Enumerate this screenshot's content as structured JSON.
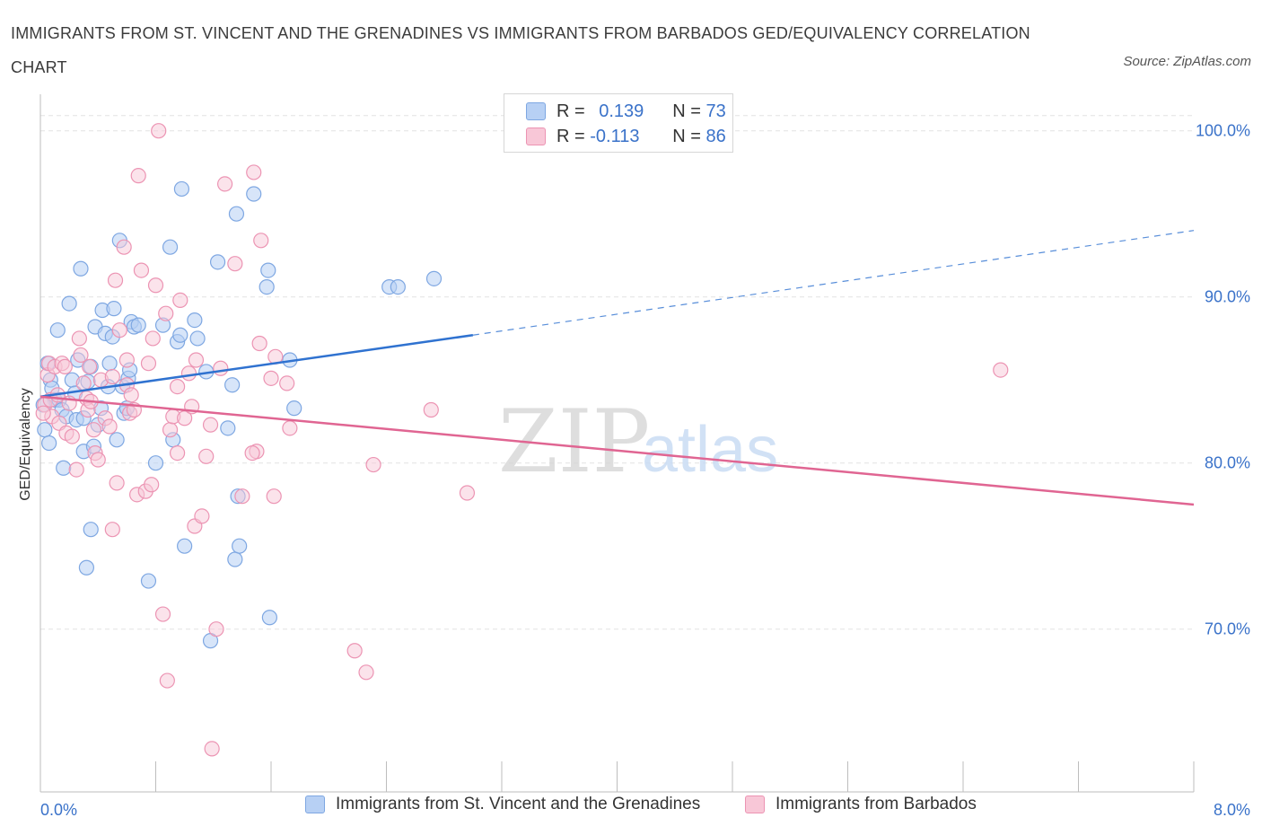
{
  "title": "IMMIGRANTS FROM ST. VINCENT AND THE GRENADINES VS IMMIGRANTS FROM BARBADOS GED/EQUIVALENCY CORRELATION CHART",
  "source": "Source: ZipAtlas.com",
  "watermark": {
    "zip": "ZIP",
    "atlas": "atlas"
  },
  "colors": {
    "blue_fill": "#b7d0f4",
    "blue_stroke": "#7ea7e2",
    "blue_line": "#2f72d0",
    "pink_fill": "#f8c7d7",
    "pink_stroke": "#ec94b3",
    "pink_line": "#e06592",
    "axis_text": "#3a72c9",
    "grid": "#e2e2e2"
  },
  "stats": {
    "blue": {
      "r_label": "R = ",
      "r_value": "0.139",
      "n_label": "N = ",
      "n_value": "73"
    },
    "pink": {
      "r_label": "R = ",
      "r_value": "-0.113",
      "n_label": "N = ",
      "n_value": "86"
    }
  },
  "chart_data": {
    "type": "scatter",
    "title": "IMMIGRANTS FROM ST. VINCENT AND THE GRENADINES VS IMMIGRANTS FROM BARBADOS GED/EQUIVALENCY CORRELATION CHART",
    "xlabel": "",
    "ylabel": "GED/Equivalency",
    "xlim": [
      0,
      8
    ],
    "ylim": [
      60.2,
      102.2
    ],
    "x_tick_labels": [
      "0.0%",
      "8.0%"
    ],
    "y_ticks": [
      70,
      80,
      90,
      100
    ],
    "y_tick_labels": [
      "70.0%",
      "80.0%",
      "90.0%",
      "100.0%"
    ],
    "grid": true,
    "legend_position": "bottom",
    "series": [
      {
        "name": "Immigrants from St. Vincent and the Grenadines",
        "color": "#7ea7e2",
        "trend": {
          "x0": 0,
          "y0": 84.0,
          "x1": 3.0,
          "y1": 87.7,
          "dashed_to_x": 8.0,
          "dashed_y": 94.0
        },
        "points": [
          [
            0.03,
            82.0
          ],
          [
            0.05,
            86.0
          ],
          [
            0.06,
            81.2
          ],
          [
            0.07,
            85.0
          ],
          [
            0.08,
            84.5
          ],
          [
            0.1,
            83.8
          ],
          [
            0.12,
            88.0
          ],
          [
            0.13,
            83.8
          ],
          [
            0.15,
            83.2
          ],
          [
            0.16,
            79.7
          ],
          [
            0.18,
            82.8
          ],
          [
            0.2,
            89.6
          ],
          [
            0.22,
            85.0
          ],
          [
            0.24,
            84.2
          ],
          [
            0.25,
            82.6
          ],
          [
            0.26,
            86.2
          ],
          [
            0.28,
            91.7
          ],
          [
            0.3,
            82.7
          ],
          [
            0.3,
            80.7
          ],
          [
            0.32,
            73.7
          ],
          [
            0.33,
            84.9
          ],
          [
            0.35,
            76.0
          ],
          [
            0.35,
            85.8
          ],
          [
            0.37,
            81.0
          ],
          [
            0.38,
            88.2
          ],
          [
            0.4,
            82.3
          ],
          [
            0.42,
            83.3
          ],
          [
            0.43,
            89.2
          ],
          [
            0.45,
            87.8
          ],
          [
            0.47,
            84.6
          ],
          [
            0.48,
            86.0
          ],
          [
            0.5,
            87.6
          ],
          [
            0.51,
            89.3
          ],
          [
            0.53,
            81.4
          ],
          [
            0.55,
            93.4
          ],
          [
            0.57,
            84.6
          ],
          [
            0.58,
            83.0
          ],
          [
            0.6,
            83.3
          ],
          [
            0.61,
            85.1
          ],
          [
            0.62,
            85.6
          ],
          [
            0.63,
            88.5
          ],
          [
            0.65,
            88.2
          ],
          [
            0.68,
            88.3
          ],
          [
            0.75,
            72.9
          ],
          [
            0.8,
            80.0
          ],
          [
            0.85,
            88.3
          ],
          [
            0.9,
            93.0
          ],
          [
            0.92,
            81.4
          ],
          [
            0.95,
            87.3
          ],
          [
            0.97,
            87.7
          ],
          [
            0.98,
            96.5
          ],
          [
            1.0,
            75.0
          ],
          [
            1.07,
            88.6
          ],
          [
            1.09,
            87.5
          ],
          [
            1.15,
            85.5
          ],
          [
            1.18,
            69.3
          ],
          [
            1.23,
            92.1
          ],
          [
            1.3,
            82.1
          ],
          [
            1.33,
            84.7
          ],
          [
            1.35,
            74.2
          ],
          [
            1.36,
            95.0
          ],
          [
            1.37,
            78.0
          ],
          [
            1.38,
            75.0
          ],
          [
            1.48,
            96.2
          ],
          [
            1.57,
            90.6
          ],
          [
            1.58,
            91.6
          ],
          [
            1.59,
            70.7
          ],
          [
            1.73,
            86.2
          ],
          [
            1.76,
            83.3
          ],
          [
            2.42,
            90.6
          ],
          [
            2.48,
            90.6
          ],
          [
            2.73,
            91.1
          ],
          [
            0.02,
            83.5
          ]
        ]
      },
      {
        "name": "Immigrants from Barbados",
        "color": "#ec94b3",
        "trend": {
          "x0": 0,
          "y0": 84.0,
          "x1": 8.0,
          "y1": 77.5
        },
        "points": [
          [
            0.03,
            83.5
          ],
          [
            0.05,
            85.3
          ],
          [
            0.06,
            86.0
          ],
          [
            0.07,
            83.8
          ],
          [
            0.08,
            82.8
          ],
          [
            0.1,
            85.8
          ],
          [
            0.12,
            84.1
          ],
          [
            0.13,
            82.4
          ],
          [
            0.15,
            86.0
          ],
          [
            0.17,
            85.8
          ],
          [
            0.18,
            81.8
          ],
          [
            0.2,
            83.6
          ],
          [
            0.22,
            81.6
          ],
          [
            0.25,
            79.6
          ],
          [
            0.27,
            87.5
          ],
          [
            0.28,
            86.5
          ],
          [
            0.3,
            84.8
          ],
          [
            0.32,
            83.9
          ],
          [
            0.33,
            83.2
          ],
          [
            0.35,
            83.7
          ],
          [
            0.37,
            82.0
          ],
          [
            0.38,
            80.6
          ],
          [
            0.4,
            80.2
          ],
          [
            0.42,
            85.0
          ],
          [
            0.45,
            82.7
          ],
          [
            0.48,
            82.2
          ],
          [
            0.5,
            85.2
          ],
          [
            0.5,
            76.0
          ],
          [
            0.52,
            91.0
          ],
          [
            0.53,
            78.8
          ],
          [
            0.55,
            88.0
          ],
          [
            0.58,
            93.0
          ],
          [
            0.6,
            86.2
          ],
          [
            0.6,
            84.7
          ],
          [
            0.62,
            83.0
          ],
          [
            0.63,
            84.1
          ],
          [
            0.65,
            83.2
          ],
          [
            0.67,
            78.1
          ],
          [
            0.68,
            97.3
          ],
          [
            0.7,
            91.6
          ],
          [
            0.73,
            78.3
          ],
          [
            0.75,
            86.0
          ],
          [
            0.77,
            78.7
          ],
          [
            0.78,
            87.5
          ],
          [
            0.8,
            90.7
          ],
          [
            0.82,
            100.0
          ],
          [
            0.85,
            70.9
          ],
          [
            0.87,
            89.0
          ],
          [
            0.88,
            66.9
          ],
          [
            0.9,
            82.0
          ],
          [
            0.92,
            82.8
          ],
          [
            0.95,
            80.6
          ],
          [
            0.95,
            84.6
          ],
          [
            0.97,
            89.8
          ],
          [
            1.0,
            82.7
          ],
          [
            1.03,
            85.4
          ],
          [
            1.05,
            83.4
          ],
          [
            1.07,
            76.2
          ],
          [
            1.08,
            86.2
          ],
          [
            1.12,
            76.8
          ],
          [
            1.15,
            80.4
          ],
          [
            1.18,
            82.3
          ],
          [
            1.19,
            62.8
          ],
          [
            1.22,
            70.0
          ],
          [
            1.25,
            85.7
          ],
          [
            1.28,
            96.8
          ],
          [
            1.35,
            92.0
          ],
          [
            1.4,
            78.0
          ],
          [
            1.48,
            97.5
          ],
          [
            1.5,
            80.7
          ],
          [
            1.52,
            87.2
          ],
          [
            1.53,
            93.4
          ],
          [
            1.6,
            85.1
          ],
          [
            1.62,
            78.0
          ],
          [
            1.63,
            86.4
          ],
          [
            1.71,
            84.8
          ],
          [
            1.73,
            82.1
          ],
          [
            2.18,
            68.7
          ],
          [
            2.26,
            67.4
          ],
          [
            2.31,
            79.9
          ],
          [
            2.71,
            83.2
          ],
          [
            2.96,
            78.2
          ],
          [
            6.66,
            85.6
          ],
          [
            0.02,
            83.0
          ],
          [
            0.34,
            85.8
          ],
          [
            1.47,
            80.6
          ]
        ]
      }
    ]
  },
  "legend": {
    "blue_label": "Immigrants from St. Vincent and the Grenadines",
    "pink_label": "Immigrants from Barbados"
  }
}
